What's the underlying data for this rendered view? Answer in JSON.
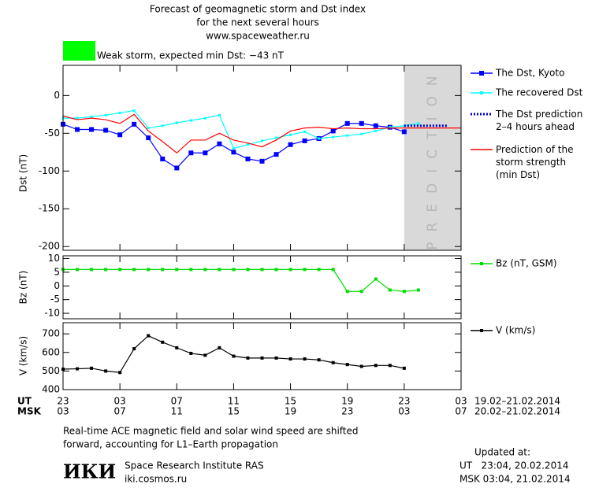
{
  "header": {
    "title_lines": [
      "Forecast of geomagnetic storm and Dst index",
      "for the next several hours",
      "www.spaceweather.ru"
    ],
    "storm": {
      "label": "Weak storm, expected min Dst: −43 nT",
      "color": "#00ff00"
    }
  },
  "chart_data": [
    {
      "type": "line",
      "ylabel": "Dst (nT)",
      "xlim": [
        0,
        28
      ],
      "xticks": [
        0,
        4,
        8,
        12,
        16,
        20,
        24,
        28
      ],
      "ylim": [
        -205,
        40
      ],
      "yticks": [
        -200,
        -150,
        -100,
        -50,
        0
      ],
      "prediction_band": {
        "xlim": [
          24,
          28
        ],
        "label": "PREDICTION",
        "color": "#d9d9d9"
      },
      "series": [
        {
          "name": "The Dst, Kyoto",
          "color": "#0000ff",
          "marker": "square",
          "x": [
            0,
            1,
            2,
            3,
            4,
            5,
            6,
            7,
            8,
            9,
            10,
            11,
            12,
            13,
            14,
            15,
            16,
            17,
            18,
            19,
            20,
            21,
            22,
            23,
            24
          ],
          "values": [
            -38,
            -45,
            -45,
            -46,
            -52,
            -38,
            -56,
            -84,
            -96,
            -76,
            -76,
            -64,
            -75,
            -84,
            -87,
            -78,
            -65,
            -60,
            -57,
            -47,
            -37,
            -37,
            -40,
            -42,
            -48
          ]
        },
        {
          "name": "The recovered Dst",
          "color": "#00ffff",
          "marker": "square",
          "x": [
            0,
            1,
            2,
            3,
            4,
            5,
            6,
            7,
            8,
            9,
            10,
            11,
            12,
            13,
            14,
            15,
            16,
            17,
            18,
            19,
            20,
            21,
            22,
            23,
            24,
            25
          ],
          "values": [
            -30,
            -30,
            -28,
            -26,
            -23,
            -20,
            -43,
            -40,
            -36,
            -33,
            -30,
            -26,
            -70,
            -65,
            -60,
            -56,
            -52,
            -48,
            -57,
            -55,
            -53,
            -51,
            -47,
            -42,
            -40,
            -37
          ]
        },
        {
          "name": "The Dst prediction\n2–4 hours ahead",
          "color": "#0000cc",
          "line_style": "dotted",
          "x": [
            24,
            27
          ],
          "values": [
            -40,
            -40
          ]
        },
        {
          "name": "Prediction of the\nstorm strength\n(min Dst)",
          "color": "#ff0000",
          "x": [
            0,
            1,
            2,
            3,
            4,
            5,
            6,
            7,
            8,
            9,
            10,
            11,
            12,
            13,
            14,
            15,
            16,
            17,
            18,
            19,
            20,
            21,
            22,
            23,
            24,
            28
          ],
          "values": [
            -27,
            -32,
            -30,
            -32,
            -37,
            -25,
            -47,
            -61,
            -76,
            -59,
            -59,
            -50,
            -59,
            -63,
            -68,
            -59,
            -47,
            -43,
            -42,
            -44,
            -43,
            -44,
            -44,
            -43,
            -43,
            -43
          ]
        }
      ]
    },
    {
      "type": "line",
      "ylabel": "Bz (nT)",
      "xlim": [
        0,
        28
      ],
      "xticks": [
        0,
        4,
        8,
        12,
        16,
        20,
        24,
        28
      ],
      "ylim": [
        -12,
        11
      ],
      "yticks": [
        -10,
        -5,
        0,
        5,
        10
      ],
      "series": [
        {
          "name": "Bz (nT, GSM)",
          "color": "#00dd00",
          "marker": "square",
          "x": [
            0,
            1,
            2,
            3,
            4,
            5,
            6,
            7,
            8,
            9,
            10,
            11,
            12,
            13,
            14,
            15,
            16,
            17,
            18,
            19,
            20,
            21,
            22,
            23,
            24,
            25
          ],
          "values": [
            6,
            6,
            6,
            6,
            6,
            6,
            6,
            6,
            6,
            6,
            6,
            6,
            6,
            6,
            6,
            6,
            6,
            6,
            6,
            6,
            -2,
            -2,
            2.5,
            -1.5,
            -2,
            -1.5
          ]
        }
      ]
    },
    {
      "type": "line",
      "ylabel": "V (km/s)",
      "xlim": [
        0,
        28
      ],
      "xticks": [
        0,
        4,
        8,
        12,
        16,
        20,
        24,
        28
      ],
      "ylim": [
        400,
        760
      ],
      "yticks": [
        400,
        500,
        600,
        700
      ],
      "series": [
        {
          "name": "V (km/s)",
          "color": "#000000",
          "marker": "square",
          "x": [
            0,
            1,
            2,
            3,
            4,
            5,
            6,
            7,
            8,
            9,
            10,
            11,
            12,
            13,
            14,
            15,
            16,
            17,
            18,
            19,
            20,
            21,
            22,
            23,
            24
          ],
          "values": [
            510,
            512,
            515,
            500,
            492,
            620,
            690,
            655,
            625,
            595,
            585,
            625,
            580,
            570,
            570,
            570,
            565,
            565,
            560,
            545,
            535,
            525,
            530,
            530,
            515
          ]
        }
      ]
    }
  ],
  "time_axis": {
    "rows": [
      {
        "name": "UT",
        "labels": [
          "23",
          "03",
          "07",
          "11",
          "15",
          "19",
          "23",
          "03"
        ],
        "dates": "19.02–21.02.2014"
      },
      {
        "name": "MSK",
        "labels": [
          "03",
          "07",
          "11",
          "15",
          "19",
          "23",
          "03",
          "07"
        ],
        "dates": "20.02–21.02.2014"
      }
    ]
  },
  "footer": {
    "note_lines": [
      "Real-time ACE magnetic field and solar wind speed are shifted",
      "forward, accounting for L1–Earth propagation"
    ],
    "logo": "ИКИ",
    "institute": "Space Research Institute RAS",
    "site": "iki.cosmos.ru",
    "updated_lines": [
      "Updated at:",
      "UT   23:04, 20.02.2014",
      "MSK 03:04, 21.02.2014"
    ]
  }
}
